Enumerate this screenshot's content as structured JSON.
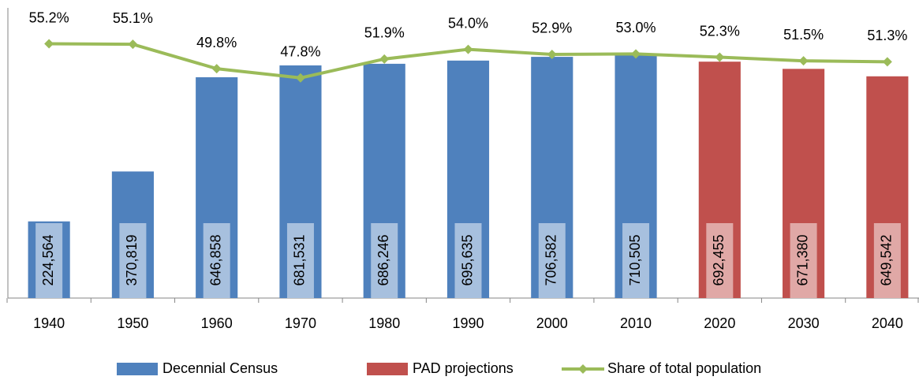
{
  "chart_data": {
    "type": "bar",
    "categories": [
      "1940",
      "1950",
      "1960",
      "1970",
      "1980",
      "1990",
      "2000",
      "2010",
      "2020",
      "2030",
      "2040"
    ],
    "series": [
      {
        "name": "Decennial Census",
        "color": "#4f81bd",
        "values": [
          224564,
          370819,
          646858,
          681531,
          686246,
          695635,
          706582,
          710505,
          null,
          null,
          null
        ],
        "value_labels": [
          "224,564",
          "370,819",
          "646,858",
          "681,531",
          "686,246",
          "695,635",
          "706,582",
          "710,505",
          null,
          null,
          null
        ]
      },
      {
        "name": "PAD projections",
        "color": "#c0504d",
        "values": [
          null,
          null,
          null,
          null,
          null,
          null,
          null,
          null,
          692455,
          671380,
          649542
        ],
        "value_labels": [
          null,
          null,
          null,
          null,
          null,
          null,
          null,
          null,
          "692,455",
          "671,380",
          "649,542"
        ]
      },
      {
        "name": "Share of total population",
        "type": "line",
        "axis": "y2",
        "color": "#9bbb59",
        "values": [
          55.2,
          55.1,
          49.8,
          47.8,
          51.9,
          54.0,
          52.9,
          53.0,
          52.3,
          51.5,
          51.3
        ],
        "value_labels": [
          "55.2%",
          "55.1%",
          "49.8%",
          "47.8%",
          "51.9%",
          "54.0%",
          "52.9%",
          "53.0%",
          "52.3%",
          "51.5%",
          "51.3%"
        ]
      }
    ],
    "ylim": [
      0,
      850000
    ],
    "y2lim": [
      0,
      63
    ]
  }
}
